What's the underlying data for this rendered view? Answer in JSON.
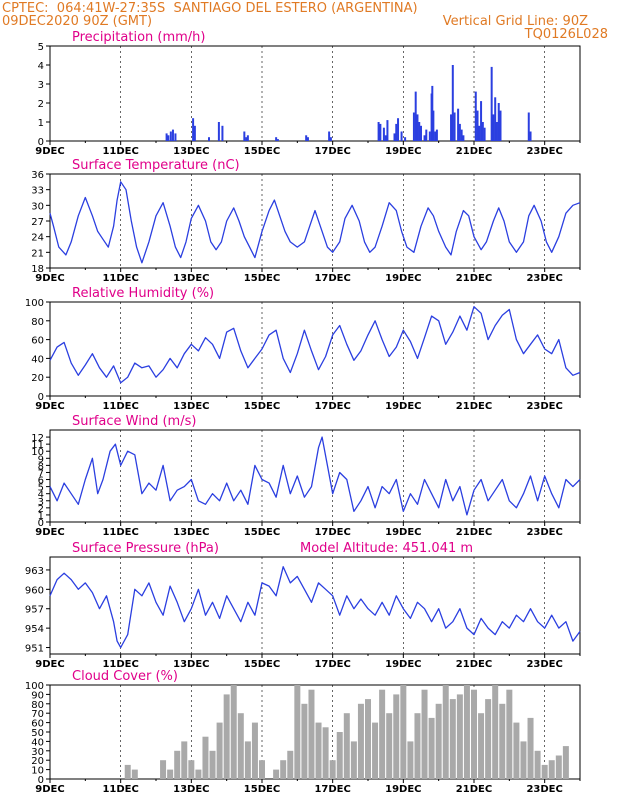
{
  "header": {
    "line1_left": "CPTEC:  064:41W-27:35S  SANTIAGO DEL ESTERO (ARGENTINA)",
    "line2_left": "09DEC2020 90Z (GMT)",
    "line2_right": "Vertical Grid Line: 90Z",
    "line3_right": "TQ0126L028"
  },
  "colors": {
    "header": "#e07a24",
    "title": "#e0008a",
    "series": "#2b3fe0",
    "bars": "#a9a9a9",
    "grid": "#000000"
  },
  "x_tick_labels": [
    "9DEC",
    "11DEC",
    "13DEC",
    "15DEC",
    "17DEC",
    "19DEC",
    "21DEC",
    "23DEC"
  ],
  "model_altitude": "Model Altitude: 451.041 m",
  "chart_data": [
    {
      "id": "precip",
      "type": "bar",
      "title": "Precipitation (mm/h)",
      "ylim": [
        0,
        5
      ],
      "yticks": [
        0,
        1,
        2,
        3,
        4,
        5
      ],
      "xlim": [
        9,
        24
      ],
      "x": [
        12.3,
        12.35,
        12.42,
        12.48,
        12.55,
        13.05,
        13.1,
        13.5,
        13.78,
        13.88,
        14.5,
        14.55,
        14.6,
        15.4,
        15.45,
        16.25,
        16.3,
        16.9,
        16.95,
        18.3,
        18.35,
        18.45,
        18.5,
        18.55,
        18.75,
        18.8,
        18.85,
        18.95,
        19.05,
        19.3,
        19.35,
        19.4,
        19.45,
        19.5,
        19.6,
        19.65,
        19.75,
        19.8,
        19.82,
        19.85,
        19.9,
        19.95,
        20.35,
        20.4,
        20.45,
        20.55,
        20.6,
        20.65,
        20.7,
        21.05,
        21.1,
        21.15,
        21.2,
        21.25,
        21.3,
        21.5,
        21.55,
        21.6,
        21.65,
        21.7,
        21.75,
        22.55,
        22.6
      ],
      "values": [
        0.4,
        0.3,
        0.5,
        0.6,
        0.4,
        1.2,
        0.8,
        0.2,
        1.0,
        0.8,
        0.5,
        0.2,
        0.3,
        0.2,
        0.1,
        0.3,
        0.2,
        0.5,
        0.2,
        1.0,
        0.9,
        0.7,
        0.3,
        1.1,
        0.4,
        0.9,
        1.2,
        0.5,
        0.2,
        1.5,
        2.6,
        1.4,
        1.0,
        0.8,
        0.3,
        0.6,
        0.5,
        2.5,
        2.9,
        1.6,
        0.5,
        0.6,
        1.4,
        4.0,
        1.5,
        1.7,
        0.9,
        0.6,
        0.3,
        2.6,
        1.6,
        0.8,
        2.1,
        1.0,
        0.7,
        3.9,
        1.4,
        2.3,
        1.0,
        2.0,
        1.6,
        1.5,
        0.5
      ]
    },
    {
      "id": "temp",
      "type": "line",
      "title": "Surface Temperature (nC)",
      "ylim": [
        18,
        36
      ],
      "yticks": [
        18,
        21,
        24,
        27,
        30,
        33,
        36
      ],
      "xlim": [
        9,
        24
      ],
      "x": [
        9.0,
        9.1,
        9.25,
        9.45,
        9.6,
        9.8,
        10.0,
        10.2,
        10.35,
        10.5,
        10.65,
        10.8,
        10.9,
        11.0,
        11.15,
        11.3,
        11.45,
        11.6,
        11.8,
        12.0,
        12.2,
        12.4,
        12.55,
        12.7,
        12.85,
        13.0,
        13.2,
        13.4,
        13.55,
        13.7,
        13.85,
        14.0,
        14.2,
        14.35,
        14.5,
        14.65,
        14.8,
        15.0,
        15.2,
        15.35,
        15.5,
        15.65,
        15.8,
        16.0,
        16.2,
        16.35,
        16.5,
        16.7,
        16.85,
        17.0,
        17.2,
        17.35,
        17.55,
        17.75,
        17.9,
        18.05,
        18.2,
        18.4,
        18.6,
        18.8,
        18.95,
        19.1,
        19.3,
        19.5,
        19.7,
        19.85,
        20.0,
        20.2,
        20.35,
        20.5,
        20.7,
        20.85,
        21.0,
        21.2,
        21.35,
        21.55,
        21.7,
        21.85,
        22.0,
        22.2,
        22.4,
        22.55,
        22.7,
        22.9,
        23.05,
        23.2,
        23.4,
        23.6,
        23.8,
        24.0
      ],
      "values": [
        28.5,
        26,
        22,
        20.5,
        23,
        28,
        31.5,
        28,
        25,
        23.5,
        22,
        26,
        31,
        34.5,
        33,
        27,
        22,
        19,
        23,
        28,
        30.5,
        26,
        22,
        20,
        23,
        27.5,
        30,
        27,
        23,
        21.5,
        23,
        27,
        29.5,
        27,
        24,
        22,
        20,
        25,
        29,
        31,
        28,
        25,
        23,
        22,
        23,
        26,
        29,
        25,
        22,
        21,
        23,
        27.5,
        30,
        27,
        23,
        21,
        22,
        26,
        30.5,
        29,
        25,
        22,
        21,
        26,
        29.5,
        28,
        25,
        22,
        20.5,
        25,
        29,
        28,
        24,
        21.5,
        23,
        27,
        29.5,
        27,
        23,
        21,
        23,
        28,
        30,
        27,
        23,
        21,
        24,
        28.5,
        30,
        30.5
      ]
    },
    {
      "id": "rh",
      "type": "line",
      "title": "Relative Humidity (%)",
      "ylim": [
        0,
        100
      ],
      "yticks": [
        0,
        20,
        40,
        60,
        80,
        100
      ],
      "xlim": [
        9,
        24
      ],
      "x": [
        9.0,
        9.2,
        9.4,
        9.6,
        9.8,
        10.0,
        10.2,
        10.4,
        10.6,
        10.8,
        11.0,
        11.2,
        11.4,
        11.6,
        11.8,
        12.0,
        12.2,
        12.4,
        12.6,
        12.8,
        13.0,
        13.2,
        13.4,
        13.6,
        13.8,
        14.0,
        14.2,
        14.4,
        14.6,
        14.8,
        15.0,
        15.2,
        15.4,
        15.6,
        15.8,
        16.0,
        16.2,
        16.4,
        16.6,
        16.8,
        17.0,
        17.2,
        17.4,
        17.6,
        17.8,
        18.0,
        18.2,
        18.4,
        18.6,
        18.8,
        19.0,
        19.2,
        19.4,
        19.6,
        19.8,
        20.0,
        20.2,
        20.4,
        20.6,
        20.8,
        21.0,
        21.2,
        21.4,
        21.6,
        21.8,
        22.0,
        22.2,
        22.4,
        22.6,
        22.8,
        23.0,
        23.2,
        23.4,
        23.6,
        23.8,
        24.0
      ],
      "values": [
        38,
        52,
        57,
        35,
        22,
        33,
        45,
        30,
        20,
        32,
        14,
        20,
        35,
        30,
        32,
        20,
        28,
        40,
        30,
        45,
        55,
        48,
        62,
        55,
        40,
        68,
        72,
        48,
        30,
        40,
        50,
        65,
        70,
        40,
        25,
        45,
        70,
        48,
        28,
        42,
        65,
        75,
        55,
        38,
        48,
        65,
        80,
        60,
        42,
        52,
        70,
        58,
        40,
        62,
        85,
        80,
        55,
        68,
        85,
        70,
        95,
        88,
        60,
        75,
        86,
        92,
        60,
        45,
        55,
        65,
        50,
        45,
        60,
        30,
        22,
        25
      ]
    },
    {
      "id": "wind",
      "type": "line",
      "title": "Surface Wind (m/s)",
      "ylim": [
        0,
        13
      ],
      "yticks": [
        0,
        1,
        2,
        3,
        4,
        5,
        6,
        7,
        8,
        9,
        10,
        11,
        12
      ],
      "xlim": [
        9,
        24
      ],
      "x": [
        9.0,
        9.2,
        9.4,
        9.6,
        9.8,
        10.0,
        10.2,
        10.35,
        10.5,
        10.7,
        10.85,
        11.0,
        11.2,
        11.4,
        11.6,
        11.8,
        12.0,
        12.2,
        12.4,
        12.6,
        12.8,
        13.0,
        13.2,
        13.4,
        13.6,
        13.8,
        14.0,
        14.2,
        14.4,
        14.6,
        14.8,
        15.0,
        15.2,
        15.4,
        15.6,
        15.8,
        16.0,
        16.2,
        16.4,
        16.6,
        16.7,
        16.85,
        17.0,
        17.2,
        17.4,
        17.6,
        17.8,
        18.0,
        18.2,
        18.4,
        18.6,
        18.8,
        19.0,
        19.2,
        19.4,
        19.6,
        19.8,
        20.0,
        20.2,
        20.4,
        20.6,
        20.8,
        21.0,
        21.2,
        21.4,
        21.6,
        21.8,
        22.0,
        22.2,
        22.4,
        22.6,
        22.8,
        23.0,
        23.2,
        23.4,
        23.6,
        23.8,
        24.0
      ],
      "values": [
        5,
        3,
        5.5,
        4,
        2.5,
        6,
        9,
        4,
        6,
        10,
        11,
        8,
        10,
        9.5,
        4,
        5.5,
        4.5,
        8,
        3,
        4.5,
        5,
        6,
        3,
        2.5,
        4,
        3,
        5.5,
        3,
        4.5,
        2.5,
        8,
        6,
        5.5,
        3.5,
        8,
        4,
        6.5,
        3.5,
        5,
        10.5,
        12,
        8,
        4,
        7,
        6,
        1.5,
        3,
        5,
        2,
        5,
        4,
        6,
        1.5,
        4,
        2.5,
        6,
        4,
        2,
        6,
        3,
        5,
        1,
        4.5,
        6,
        3,
        4.5,
        6,
        3,
        2,
        4,
        6.5,
        3,
        6.5,
        4,
        2,
        6,
        5,
        6
      ]
    },
    {
      "id": "pressure",
      "type": "line",
      "title": "Surface Pressure (hPa)",
      "ylim": [
        950,
        965
      ],
      "yticks": [
        951,
        954,
        957,
        960,
        963
      ],
      "xlim": [
        9,
        24
      ],
      "x": [
        9.0,
        9.2,
        9.4,
        9.6,
        9.8,
        10.0,
        10.2,
        10.4,
        10.6,
        10.8,
        10.9,
        11.0,
        11.2,
        11.4,
        11.6,
        11.8,
        12.0,
        12.2,
        12.4,
        12.6,
        12.8,
        13.0,
        13.2,
        13.4,
        13.6,
        13.8,
        14.0,
        14.2,
        14.4,
        14.6,
        14.8,
        15.0,
        15.2,
        15.4,
        15.6,
        15.8,
        16.0,
        16.2,
        16.4,
        16.6,
        16.8,
        17.0,
        17.2,
        17.4,
        17.6,
        17.8,
        18.0,
        18.2,
        18.4,
        18.6,
        18.8,
        19.0,
        19.2,
        19.4,
        19.6,
        19.8,
        20.0,
        20.2,
        20.4,
        20.6,
        20.8,
        21.0,
        21.2,
        21.4,
        21.6,
        21.8,
        22.0,
        22.2,
        22.4,
        22.6,
        22.8,
        23.0,
        23.2,
        23.4,
        23.6,
        23.8,
        24.0
      ],
      "values": [
        959,
        961.5,
        962.5,
        961.5,
        960,
        961,
        959.5,
        957,
        959,
        955,
        952,
        951,
        953,
        960,
        959,
        961,
        958,
        956,
        960.5,
        958,
        955,
        957,
        960,
        956,
        958,
        955.5,
        959,
        957,
        955,
        958,
        956,
        961,
        960.5,
        959,
        963.5,
        961,
        962,
        960,
        958,
        961,
        960,
        959,
        956,
        959,
        957,
        958.5,
        957,
        956,
        958,
        956,
        959,
        957,
        955.5,
        958,
        957,
        955,
        957,
        954,
        955,
        957,
        954,
        953,
        955.5,
        954,
        953,
        955,
        954,
        956,
        955,
        957,
        955,
        954,
        956,
        954,
        955,
        952,
        953.5
      ]
    },
    {
      "id": "cloud",
      "type": "bar",
      "title": "Cloud Cover (%)",
      "ylim": [
        0,
        100
      ],
      "yticks": [
        0,
        10,
        20,
        30,
        40,
        50,
        60,
        70,
        80,
        90,
        100
      ],
      "xlim": [
        9,
        24
      ],
      "x": [
        11.2,
        11.4,
        11.6,
        11.8,
        12.0,
        12.2,
        12.4,
        12.6,
        12.8,
        13.0,
        13.2,
        13.4,
        13.6,
        13.8,
        14.0,
        14.2,
        14.4,
        14.6,
        14.8,
        15.0,
        15.2,
        15.4,
        15.6,
        15.8,
        16.0,
        16.2,
        16.4,
        16.6,
        16.8,
        17.0,
        17.2,
        17.4,
        17.6,
        17.8,
        18.0,
        18.2,
        18.4,
        18.6,
        18.8,
        19.0,
        19.2,
        19.4,
        19.6,
        19.8,
        20.0,
        20.2,
        20.4,
        20.6,
        20.8,
        21.0,
        21.2,
        21.4,
        21.6,
        21.8,
        22.0,
        22.2,
        22.4,
        22.6,
        22.8,
        23.0,
        23.2,
        23.4,
        23.6
      ],
      "values": [
        15,
        10,
        0,
        0,
        0,
        20,
        10,
        30,
        40,
        20,
        10,
        45,
        30,
        60,
        90,
        100,
        70,
        40,
        60,
        20,
        0,
        10,
        20,
        30,
        100,
        80,
        95,
        60,
        55,
        20,
        50,
        70,
        40,
        80,
        85,
        60,
        95,
        70,
        90,
        100,
        40,
        70,
        95,
        65,
        80,
        100,
        85,
        90,
        100,
        95,
        70,
        85,
        100,
        80,
        95,
        60,
        40,
        65,
        30,
        15,
        20,
        25,
        35
      ]
    }
  ]
}
